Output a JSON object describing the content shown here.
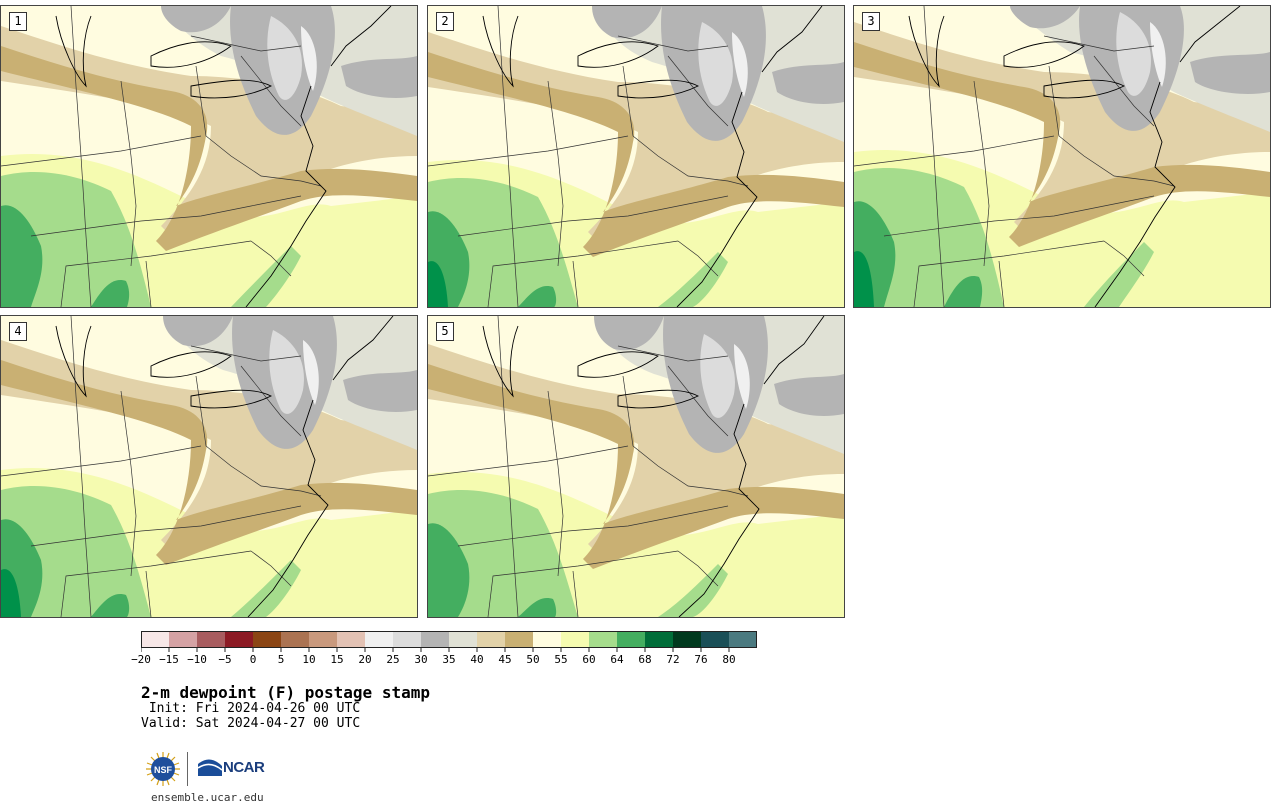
{
  "panels": [
    {
      "label": "1"
    },
    {
      "label": "2"
    },
    {
      "label": "3"
    },
    {
      "label": "4"
    },
    {
      "label": "5"
    }
  ],
  "colorbar": {
    "ticks": [
      "-20",
      "-15",
      "-10",
      "-5",
      "0",
      "5",
      "10",
      "15",
      "20",
      "25",
      "30",
      "35",
      "40",
      "45",
      "50",
      "55",
      "60",
      "64",
      "68",
      "72",
      "76",
      "80"
    ],
    "colors": [
      "#f7e7e7",
      "#d5a2a4",
      "#a85c5f",
      "#8c1a24",
      "#8b4514",
      "#ab7352",
      "#c9997d",
      "#e3c2b4",
      "#f0f0f0",
      "#dcdcdc",
      "#b4b4b4",
      "#e0e1d5",
      "#e2d2a9",
      "#c9b073",
      "#fffce0",
      "#f5fbb0",
      "#a5dc8c",
      "#44ae60",
      "#006d39",
      "#00391e",
      "#1a4f57",
      "#4b7a80"
    ]
  },
  "title": "2-m dewpoint (F) postage stamp",
  "init": " Init: Fri 2024-04-26 00 UTC",
  "valid": "Valid: Sat 2024-04-27 00 UTC",
  "logos": {
    "nsf": "NSF",
    "ncar": "NCAR"
  },
  "website": "ensemble.ucar.edu"
}
